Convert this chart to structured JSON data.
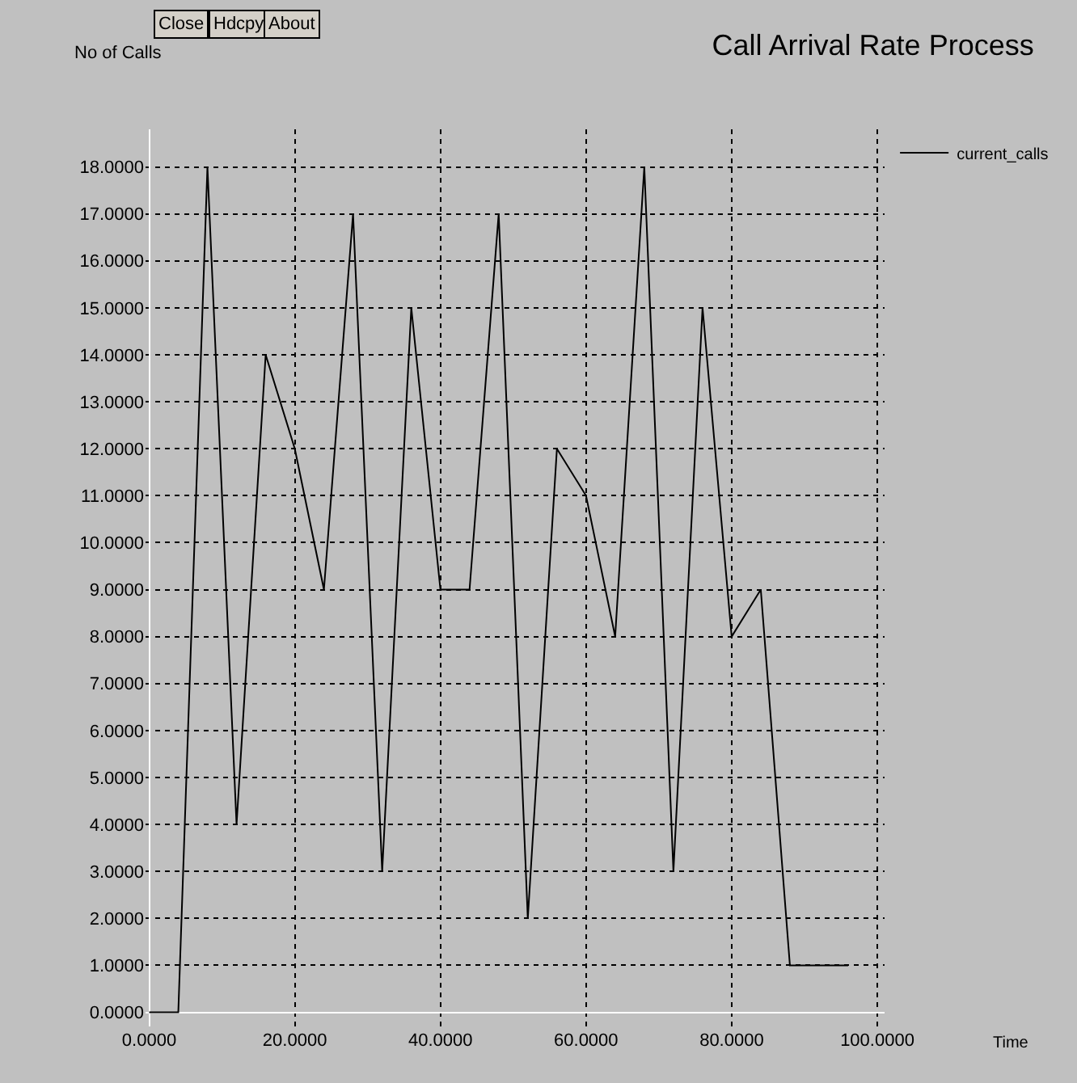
{
  "chart_data": {
    "type": "line",
    "title": "Call Arrival Rate Process",
    "xlabel": "Time",
    "ylabel": "No of Calls",
    "annotations": [
      "Close",
      "Hdcpy",
      "About"
    ],
    "x": [
      0,
      4,
      8,
      12,
      16,
      20,
      24,
      28,
      32,
      36,
      40,
      44,
      48,
      52,
      56,
      60,
      64,
      68,
      72,
      76,
      80,
      84,
      88,
      92,
      96
    ],
    "series": [
      {
        "name": "current_calls",
        "color": "#000000",
        "values": [
          0,
          0,
          18,
          4,
          14,
          12,
          9,
          17,
          3,
          15,
          9,
          9,
          17,
          2,
          12,
          11,
          8,
          18,
          3,
          15,
          8,
          9,
          1,
          1,
          1
        ]
      }
    ],
    "xlim": [
      -0.5,
      101
    ],
    "ylim": [
      -0.3,
      18.8
    ],
    "xticks": [
      {
        "value": 0,
        "label": "0.0000"
      },
      {
        "value": 20,
        "label": "20.0000"
      },
      {
        "value": 40,
        "label": "40.0000"
      },
      {
        "value": 60,
        "label": "60.0000"
      },
      {
        "value": 80,
        "label": "80.0000"
      },
      {
        "value": 100,
        "label": "100.0000"
      }
    ],
    "yticks": [
      {
        "value": 0,
        "label": "0.0000"
      },
      {
        "value": 1,
        "label": "1.0000"
      },
      {
        "value": 2,
        "label": "2.0000"
      },
      {
        "value": 3,
        "label": "3.0000"
      },
      {
        "value": 4,
        "label": "4.0000"
      },
      {
        "value": 5,
        "label": "5.0000"
      },
      {
        "value": 6,
        "label": "6.0000"
      },
      {
        "value": 7,
        "label": "7.0000"
      },
      {
        "value": 8,
        "label": "8.0000"
      },
      {
        "value": 9,
        "label": "9.0000"
      },
      {
        "value": 10,
        "label": "10.0000"
      },
      {
        "value": 11,
        "label": "11.0000"
      },
      {
        "value": 12,
        "label": "12.0000"
      },
      {
        "value": 13,
        "label": "13.0000"
      },
      {
        "value": 14,
        "label": "14.0000"
      },
      {
        "value": 15,
        "label": "15.0000"
      },
      {
        "value": 16,
        "label": "16.0000"
      },
      {
        "value": 17,
        "label": "17.0000"
      },
      {
        "value": 18,
        "label": "18.0000"
      }
    ],
    "grid": true,
    "legend": "top right",
    "marker": "none",
    "line_style": "solid"
  }
}
